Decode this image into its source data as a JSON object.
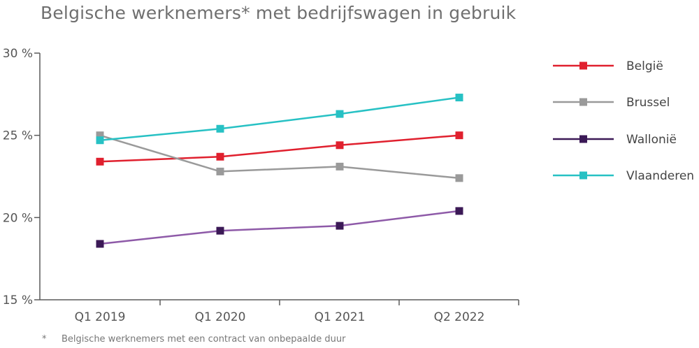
{
  "title": "Belgische werknemers* met bedrijfswagen in gebruik",
  "footnote": {
    "marker": "*",
    "text": "Belgische werknemers met een contract van onbepaalde duur"
  },
  "chart_data": {
    "type": "line",
    "categories": [
      "Q1 2019",
      "Q1 2020",
      "Q1 2021",
      "Q2 2022"
    ],
    "y_ticks": [
      "15 %",
      "20 %",
      "25 %",
      "30 %"
    ],
    "ylim": [
      15,
      30
    ],
    "grid": false,
    "legend_position": "right",
    "series": [
      {
        "name": "België",
        "color": "#e0202e",
        "values": [
          23.4,
          23.7,
          24.4,
          25.0
        ]
      },
      {
        "name": "Brussel",
        "color": "#9a9a9a",
        "values": [
          25.0,
          22.8,
          23.1,
          22.4
        ]
      },
      {
        "name": "Wallonië",
        "color": "#3b1956",
        "line_color": "#8e5aa8",
        "values": [
          18.4,
          19.2,
          19.5,
          20.4
        ]
      },
      {
        "name": "Vlaanderen",
        "color": "#27c1c4",
        "values": [
          24.7,
          25.4,
          26.3,
          27.3
        ]
      }
    ]
  }
}
